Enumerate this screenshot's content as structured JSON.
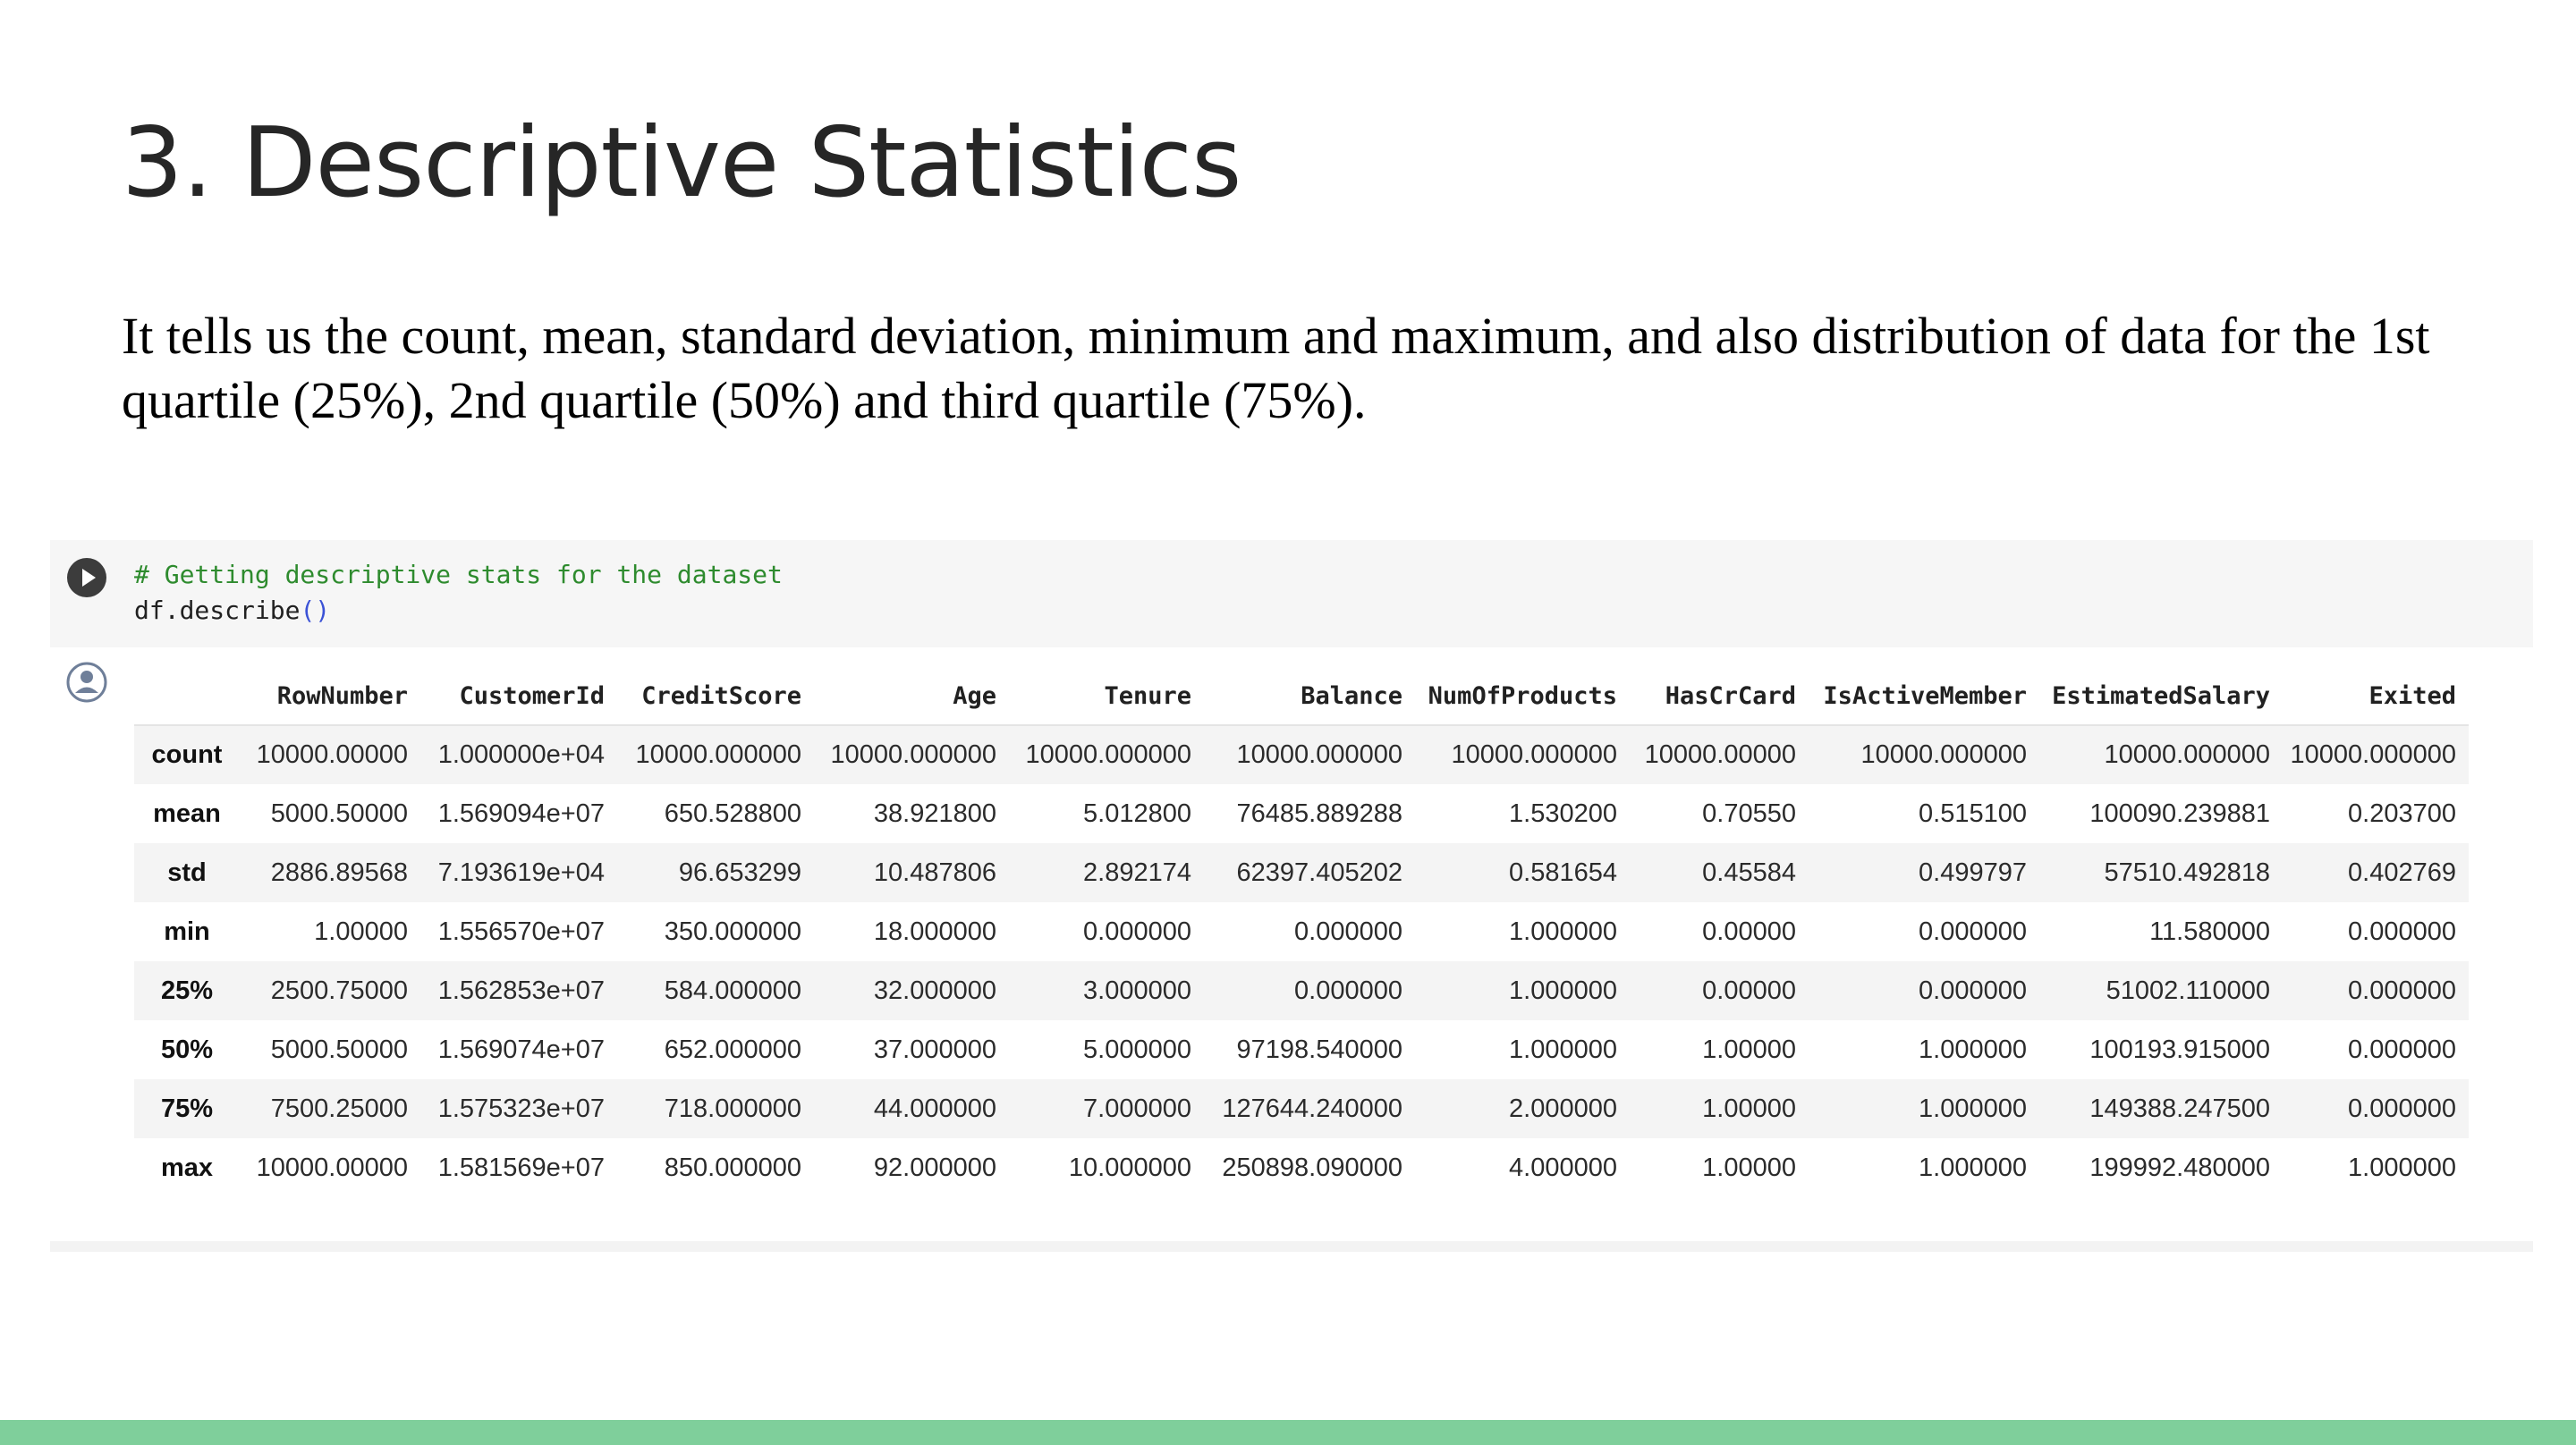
{
  "slide": {
    "title": "3. Descriptive Statistics",
    "body": "It tells us the count, mean, standard deviation, minimum and maximum, and also distribution of data for the 1st quartile (25%), 2nd quartile (50%) and third quartile (75%).",
    "footer_color": "#7fcf9b"
  },
  "notebook": {
    "code": {
      "comment": "# Getting descriptive stats for the dataset",
      "call_name": "df.describe",
      "call_parens": "()"
    },
    "icons": {
      "run": "play-circle-icon",
      "output": "user-avatar-icon"
    },
    "colors": {
      "comment": "#2e8b2e",
      "paren": "#3b52d6",
      "cell_background": "#f6f6f6",
      "stripe": "#f4f4f4"
    }
  },
  "table": {
    "columns": [
      "",
      "RowNumber",
      "CustomerId",
      "CreditScore",
      "Age",
      "Tenure",
      "Balance",
      "NumOfProducts",
      "HasCrCard",
      "IsActiveMember",
      "EstimatedSalary",
      "Exited"
    ],
    "rows": [
      {
        "label": "count",
        "cells": [
          "10000.00000",
          "1.000000e+04",
          "10000.000000",
          "10000.000000",
          "10000.000000",
          "10000.000000",
          "10000.000000",
          "10000.00000",
          "10000.000000",
          "10000.000000",
          "10000.000000"
        ]
      },
      {
        "label": "mean",
        "cells": [
          "5000.50000",
          "1.569094e+07",
          "650.528800",
          "38.921800",
          "5.012800",
          "76485.889288",
          "1.530200",
          "0.70550",
          "0.515100",
          "100090.239881",
          "0.203700"
        ]
      },
      {
        "label": "std",
        "cells": [
          "2886.89568",
          "7.193619e+04",
          "96.653299",
          "10.487806",
          "2.892174",
          "62397.405202",
          "0.581654",
          "0.45584",
          "0.499797",
          "57510.492818",
          "0.402769"
        ]
      },
      {
        "label": "min",
        "cells": [
          "1.00000",
          "1.556570e+07",
          "350.000000",
          "18.000000",
          "0.000000",
          "0.000000",
          "1.000000",
          "0.00000",
          "0.000000",
          "11.580000",
          "0.000000"
        ]
      },
      {
        "label": "25%",
        "cells": [
          "2500.75000",
          "1.562853e+07",
          "584.000000",
          "32.000000",
          "3.000000",
          "0.000000",
          "1.000000",
          "0.00000",
          "0.000000",
          "51002.110000",
          "0.000000"
        ]
      },
      {
        "label": "50%",
        "cells": [
          "5000.50000",
          "1.569074e+07",
          "652.000000",
          "37.000000",
          "5.000000",
          "97198.540000",
          "1.000000",
          "1.00000",
          "1.000000",
          "100193.915000",
          "0.000000"
        ]
      },
      {
        "label": "75%",
        "cells": [
          "7500.25000",
          "1.575323e+07",
          "718.000000",
          "44.000000",
          "7.000000",
          "127644.240000",
          "2.000000",
          "1.00000",
          "1.000000",
          "149388.247500",
          "0.000000"
        ]
      },
      {
        "label": "max",
        "cells": [
          "10000.00000",
          "1.581569e+07",
          "850.000000",
          "92.000000",
          "10.000000",
          "250898.090000",
          "4.000000",
          "1.00000",
          "1.000000",
          "199992.480000",
          "1.000000"
        ]
      }
    ]
  }
}
